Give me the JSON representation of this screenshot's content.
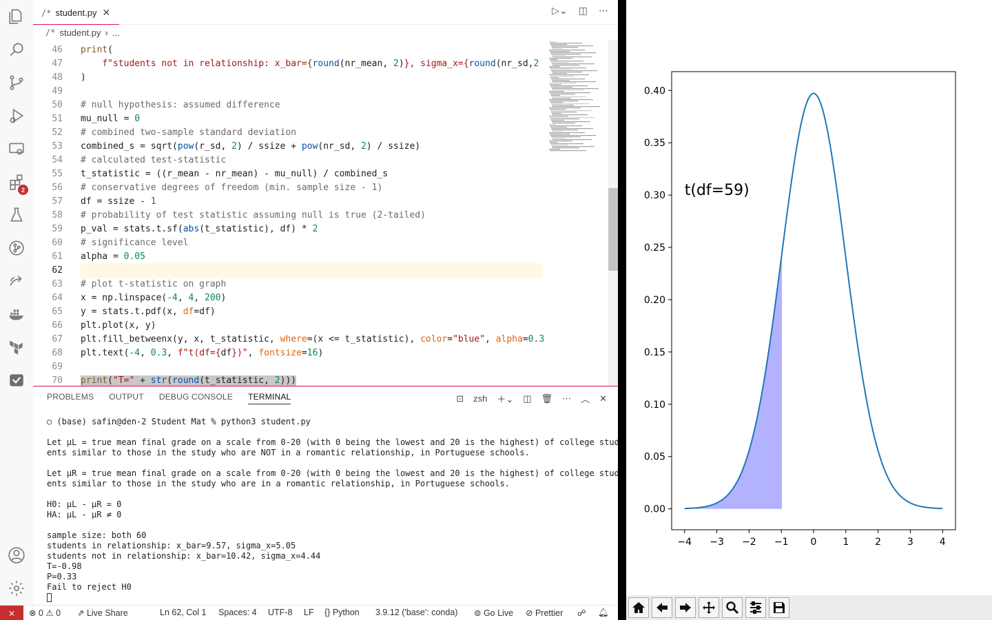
{
  "editor_tab": {
    "icon": "/*",
    "filename": "student.py"
  },
  "breadcrumb": {
    "icon": "/*",
    "file": "student.py",
    "rest": "..."
  },
  "activity_badge": "2",
  "code_lines": [
    {
      "n": "46",
      "html": "<span class='kw'>print</span>("
    },
    {
      "n": "47",
      "html": "    <span class='str'>f\"students not in relationship: x_bar={</span><span class='fn'>round</span>(nr_mean, <span class='num'>2</span>)<span class='str'>}, sigma_x={</span><span class='fn'>round</span>(nr_sd,<span class='num'>2</span>"
    },
    {
      "n": "48",
      "html": ")"
    },
    {
      "n": "49",
      "html": ""
    },
    {
      "n": "50",
      "html": "<span class='cm'># null hypothesis: assumed difference</span>"
    },
    {
      "n": "51",
      "html": "mu_null = <span class='num'>0</span>"
    },
    {
      "n": "52",
      "html": "<span class='cm'># combined two-sample standard deviation</span>"
    },
    {
      "n": "53",
      "html": "combined_s = sqrt(<span class='fn'>pow</span>(r_sd, <span class='num'>2</span>) / ssize + <span class='fn'>pow</span>(nr_sd, <span class='num'>2</span>) / ssize)"
    },
    {
      "n": "54",
      "html": "<span class='cm'># calculated test-statistic</span>"
    },
    {
      "n": "55",
      "html": "t_statistic = ((r_mean - nr_mean) - mu_null) / combined_s"
    },
    {
      "n": "56",
      "html": "<span class='cm'># conservative degrees of freedom (min. sample size - 1)</span>"
    },
    {
      "n": "57",
      "html": "df = ssize - <span class='num'>1</span>"
    },
    {
      "n": "58",
      "html": "<span class='cm'># probability of test statistic assuming null is true (2-tailed)</span>"
    },
    {
      "n": "59",
      "html": "p_val = stats.t.sf(<span class='fn'>abs</span>(t_statistic), df) * <span class='num'>2</span>"
    },
    {
      "n": "60",
      "html": "<span class='cm'># significance level</span>"
    },
    {
      "n": "61",
      "html": "alpha = <span class='num'>0.05</span>"
    },
    {
      "n": "62",
      "html": ""
    },
    {
      "n": "63",
      "html": "<span class='cm'># plot t-statistic on graph</span>"
    },
    {
      "n": "64",
      "html": "x = np.linspace(<span class='num'>-4</span>, <span class='num'>4</span>, <span class='num'>200</span>)"
    },
    {
      "n": "65",
      "html": "y = stats.t.pdf(x, <span class='kwarg'>df</span>=df)"
    },
    {
      "n": "66",
      "html": "plt.plot(x, y)"
    },
    {
      "n": "67",
      "html": "plt.fill_betweenx(y, x, t_statistic, <span class='kwarg'>where</span>=(x &lt;= t_statistic), <span class='kwarg'>color</span>=<span class='str'>\"blue\"</span>, <span class='kwarg'>alpha</span>=<span class='num'>0.3</span>"
    },
    {
      "n": "68",
      "html": "plt.text(<span class='num'>-4</span>, <span class='num'>0.3</span>, <span class='str'>f\"t(df={</span>df<span class='str'>})\"</span>, <span class='kwarg'>fontsize</span>=<span class='num'>16</span>)"
    },
    {
      "n": "69",
      "html": ""
    },
    {
      "n": "70",
      "html": "<span class='sel'><span class='kw'>print</span>(<span class='str'>\"T=\"</span> + <span class='fn'>str</span>(<span class='fn'>round</span>(t_statistic, <span class='num'>2</span>)))</span>"
    }
  ],
  "active_line": "62",
  "panel": {
    "tabs": [
      "PROBLEMS",
      "OUTPUT",
      "DEBUG CONSOLE",
      "TERMINAL"
    ],
    "active_tab": "TERMINAL",
    "shell": "zsh"
  },
  "terminal_lines": [
    "○ (base) safin@den-2 Student Mat % python3 student.py",
    "",
    "Let μL = true mean final grade on a scale from 0-20 (with 0 being the lowest and 20 is the highest) of college stud",
    "ents similar to those in the study who are NOT in a romantic relationship, in Portuguese schools.",
    "",
    "Let μR = true mean final grade on a scale from 0-20 (with 0 being the lowest and 20 is the highest) of college stud",
    "ents similar to those in the study who are in a romantic relationship, in Portuguese schools.",
    "",
    "H0: μL - μR = 0",
    "HA: μL - μR ≠ 0",
    "",
    "sample size: both 60",
    "students in relationship: x_bar=9.57, sigma_x=5.05",
    "students not in relationship: x_bar=10.42, sigma_x=4.44",
    "T=-0.98",
    "P=0.33",
    "Fail to reject H0"
  ],
  "statusbar": {
    "remote": "⨯",
    "errors": "0",
    "warnings": "0",
    "live_share": "Live Share",
    "position": "Ln 62, Col 1",
    "spaces": "Spaces: 4",
    "encoding": "UTF-8",
    "eol": "LF",
    "language": "Python",
    "interpreter": "3.9.12 ('base': conda)",
    "go_live": "Go Live",
    "prettier": "Prettier"
  },
  "chart_data": {
    "type": "line",
    "series": [
      {
        "curve": "t-distribution pdf",
        "df": 59,
        "x_range": [
          -4,
          4
        ],
        "color": "#1f77b4"
      }
    ],
    "fill": {
      "x_from": -4,
      "x_to": -0.98,
      "color": "blue",
      "alpha": 0.3
    },
    "annotation": {
      "text": "t(df=59)",
      "x": -4,
      "y": 0.3
    },
    "x_ticks": [
      "−4",
      "−3",
      "−2",
      "−1",
      "0",
      "1",
      "2",
      "3",
      "4"
    ],
    "y_ticks": [
      "0.00",
      "0.05",
      "0.10",
      "0.15",
      "0.20",
      "0.25",
      "0.30",
      "0.35",
      "0.40"
    ],
    "xlim": [
      -4.4,
      4.4
    ],
    "ylim": [
      -0.02,
      0.418
    ]
  },
  "mpl_toolbar": [
    "home-icon",
    "back-icon",
    "forward-icon",
    "pan-icon",
    "zoom-icon",
    "configure-icon",
    "save-icon"
  ]
}
